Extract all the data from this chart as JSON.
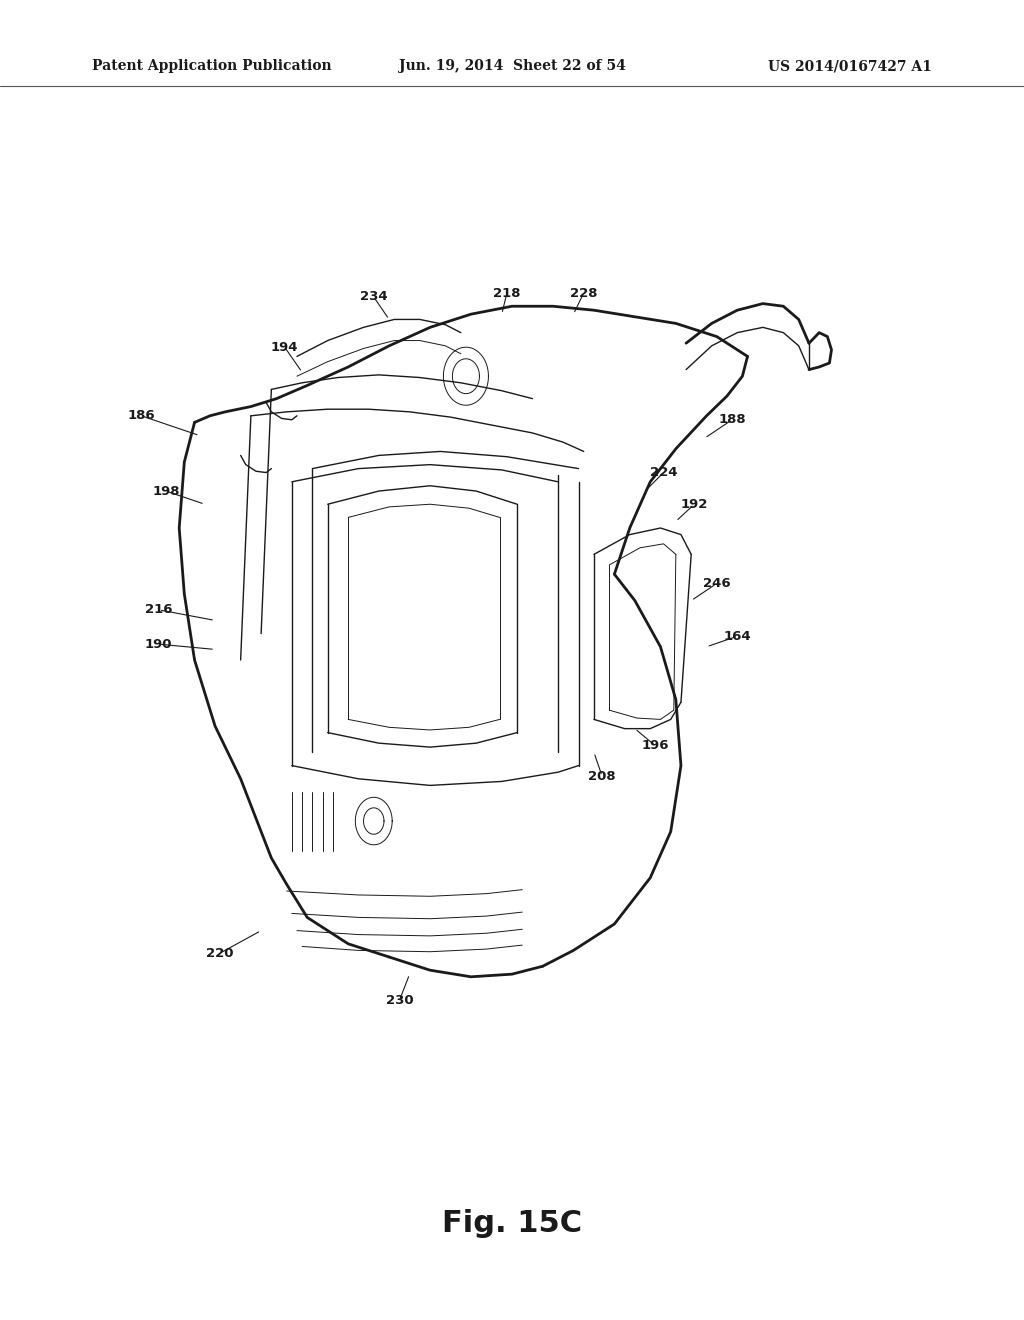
{
  "background_color": "#ffffff",
  "header_left": "Patent Application Publication",
  "header_center": "Jun. 19, 2014  Sheet 22 of 54",
  "header_right": "US 2014/0167427 A1",
  "figure_label": "Fig. 15C",
  "header_fontsize": 10,
  "figure_label_fontsize": 22,
  "line_color": "#1a1a1a",
  "text_color": "#1a1a1a"
}
